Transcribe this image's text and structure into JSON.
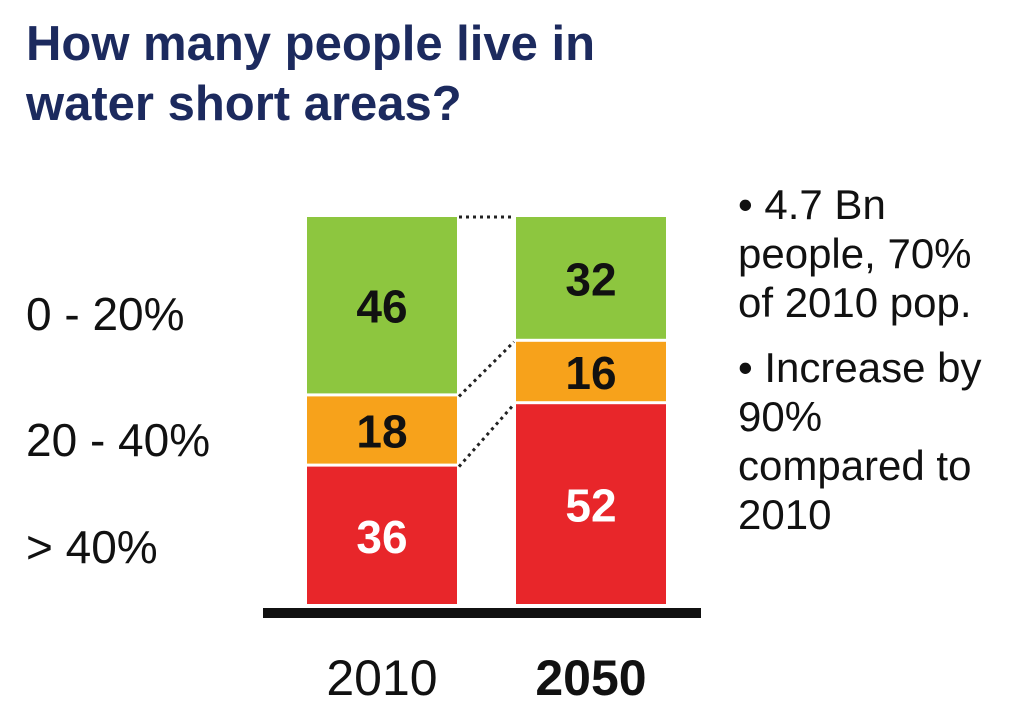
{
  "title_lines": [
    "How many people live in",
    "water short areas?"
  ],
  "colors": {
    "title": "#1c2a5e",
    "green": "#8dc63f",
    "orange": "#f7a21b",
    "red": "#e8262a",
    "axis": "#111111",
    "dots": "#222222"
  },
  "chart_data": {
    "type": "bar",
    "stacked": true,
    "title": "How many people live in water short areas?",
    "categories": [
      "2010",
      "2050"
    ],
    "series": [
      {
        "name": "> 40%",
        "color": "#e8262a",
        "values": [
          36,
          52
        ]
      },
      {
        "name": "20 - 40%",
        "color": "#f7a21b",
        "values": [
          18,
          16
        ]
      },
      {
        "name": "0 - 20%",
        "color": "#8dc63f",
        "values": [
          46,
          32
        ]
      }
    ],
    "segment_label_colors": {
      "> 40%": "#ffffff",
      "20 - 40%": "#111111",
      "0 - 20%": "#111111"
    },
    "category_bold": [
      false,
      true
    ],
    "ylim": [
      0,
      100
    ],
    "xlabel": "",
    "ylabel": ""
  },
  "notes": [
    "• 4.7 Bn people, 70% of 2010 pop.",
    "• Increase by 90% compared to 2010"
  ]
}
